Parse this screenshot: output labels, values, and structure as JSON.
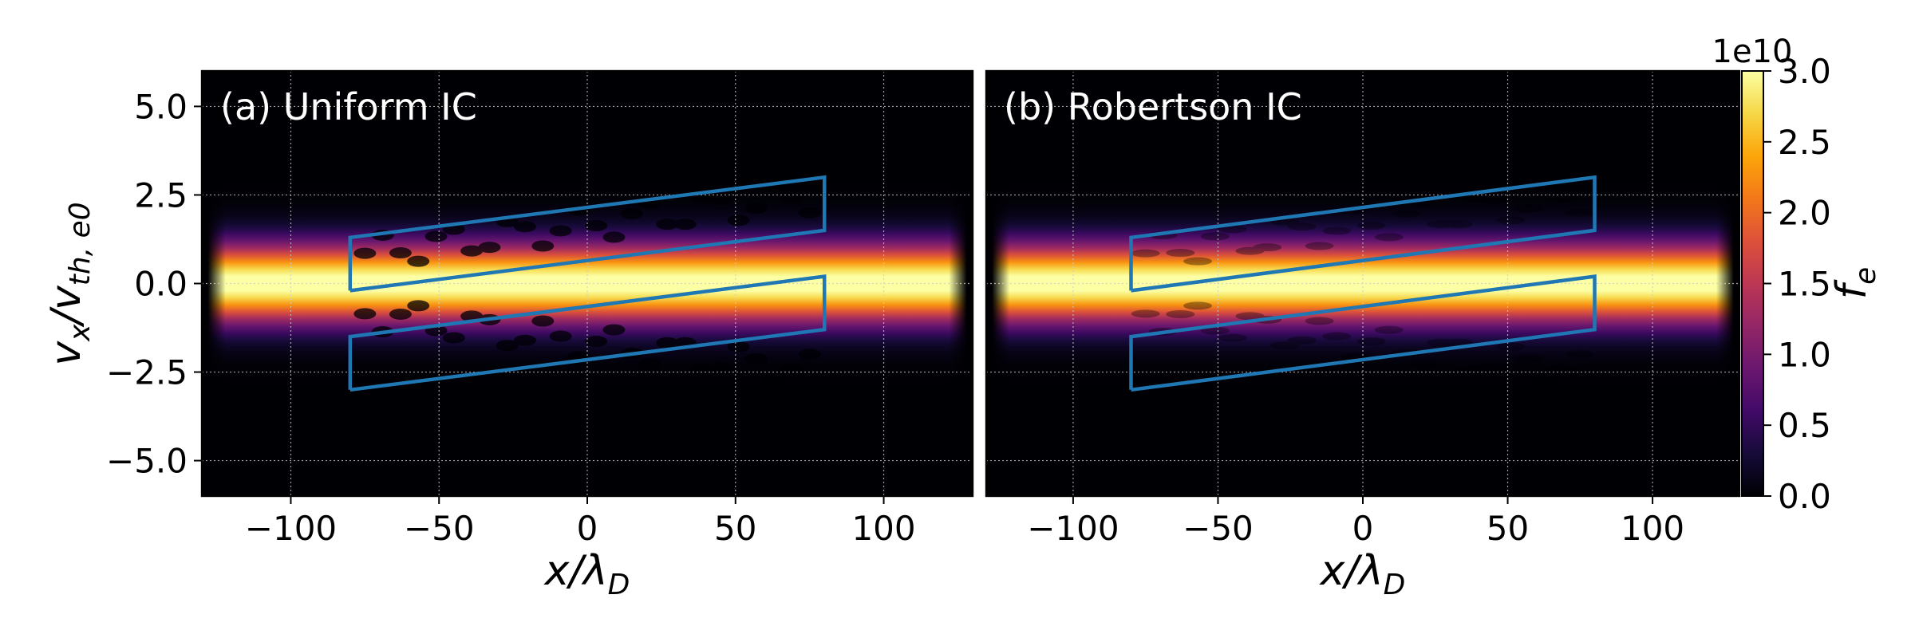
{
  "chart_data": [
    {
      "type": "heatmap",
      "panel_label": "(a) Uniform IC",
      "xlabel": "x/λ_D",
      "ylabel": "v_x/v_th,e0",
      "xlim": [
        -130,
        130
      ],
      "ylim": [
        -6,
        6
      ],
      "xticks": [
        -100,
        -50,
        0,
        50,
        100
      ],
      "xtick_labels": [
        "−100",
        "−50",
        "0",
        "50",
        "100"
      ],
      "yticks": [
        5,
        2.5,
        0,
        -2.5,
        -5
      ],
      "ytick_labels": [
        "5.0",
        "2.5",
        "0.0",
        "−2.5",
        "−5.0"
      ],
      "grid": true,
      "colormap": "inferno",
      "field": {
        "x_extent": [
          -128,
          128
        ],
        "core_sigma_v": 0.75,
        "holes": "filamentary depletion along the upper and lower edges of the boxes",
        "peak": 3.0
      },
      "overlays": [
        {
          "name": "upper-box",
          "color": "#1f77b4",
          "x": [
            -80,
            -80,
            80,
            80,
            -80
          ],
          "y": [
            -0.2,
            1.3,
            3.0,
            1.5,
            -0.2
          ]
        },
        {
          "name": "lower-box",
          "color": "#1f77b4",
          "x": [
            -80,
            -80,
            80,
            80,
            -80
          ],
          "y": [
            -3.0,
            -1.5,
            0.2,
            -1.3,
            -3.0
          ]
        }
      ]
    },
    {
      "type": "heatmap",
      "panel_label": "(b) Robertson IC",
      "xlabel": "x/λ_D",
      "xlim": [
        -130,
        130
      ],
      "ylim": [
        -6,
        6
      ],
      "xticks": [
        -100,
        -50,
        0,
        50,
        100
      ],
      "xtick_labels": [
        "−100",
        "−50",
        "0",
        "50",
        "100"
      ],
      "grid": true,
      "colormap": "inferno",
      "field": {
        "x_extent": [
          -128,
          128
        ],
        "core_sigma_v": 0.75,
        "holes": "smooth, weak depletion near the box edges",
        "peak": 3.0
      },
      "overlays": [
        {
          "name": "upper-box",
          "color": "#1f77b4",
          "x": [
            -80,
            -80,
            80,
            80,
            -80
          ],
          "y": [
            -0.2,
            1.3,
            3.0,
            1.5,
            -0.2
          ]
        },
        {
          "name": "lower-box",
          "color": "#1f77b4",
          "x": [
            -80,
            -80,
            80,
            80,
            -80
          ],
          "y": [
            -3.0,
            -1.5,
            0.2,
            -1.3,
            -3.0
          ]
        }
      ]
    }
  ],
  "colorbar": {
    "label": "f_e",
    "scale_text": "1e10",
    "range": [
      0,
      3.0
    ],
    "ticks": [
      0,
      0.5,
      1.0,
      1.5,
      2.0,
      2.5,
      3.0
    ],
    "tick_labels": [
      "0.0",
      "0.5",
      "1.0",
      "1.5",
      "2.0",
      "2.5",
      "3.0"
    ]
  }
}
